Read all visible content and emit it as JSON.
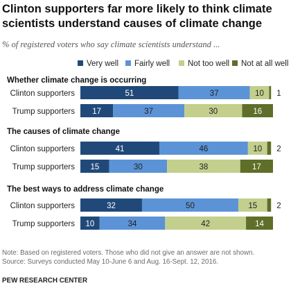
{
  "title": "Clinton supporters far more likely to think climate scientists understand causes of climate change",
  "subtitle": "% of registered voters who say climate scientists understand ...",
  "note": "Note: Based on registered voters. Those who did not give an answer are not shown.",
  "source": "Source: Surveys conducted May 10-June 6 and Aug. 16-Sept. 12, 2016.",
  "org": "PEW RESEARCH CENTER",
  "chart_data": {
    "type": "bar",
    "orientation": "horizontal",
    "stacked": true,
    "xlim": [
      0,
      100
    ],
    "legend": {
      "placement": "top"
    },
    "series": [
      {
        "name": "Very well",
        "color": "#20497a"
      },
      {
        "name": "Fairly well",
        "color": "#5b93d6"
      },
      {
        "name": "Not too well",
        "color": "#c2cf8d"
      },
      {
        "name": "Not at all well",
        "color": "#5f6e28"
      }
    ],
    "groups": [
      {
        "title": "Whether climate change is occurring",
        "rows": [
          {
            "label": "Clinton supporters",
            "values": [
              51,
              37,
              10,
              1
            ]
          },
          {
            "label": "Trump supporters",
            "values": [
              17,
              37,
              30,
              16
            ]
          }
        ]
      },
      {
        "title": "The causes of climate change",
        "rows": [
          {
            "label": "Clinton supporters",
            "values": [
              41,
              46,
              10,
              2
            ]
          },
          {
            "label": "Trump supporters",
            "values": [
              15,
              30,
              38,
              17
            ]
          }
        ]
      },
      {
        "title": "The best ways to address climate change",
        "rows": [
          {
            "label": "Clinton supporters",
            "values": [
              32,
              50,
              15,
              2
            ]
          },
          {
            "label": "Trump supporters",
            "values": [
              10,
              34,
              42,
              14
            ]
          }
        ]
      }
    ]
  }
}
